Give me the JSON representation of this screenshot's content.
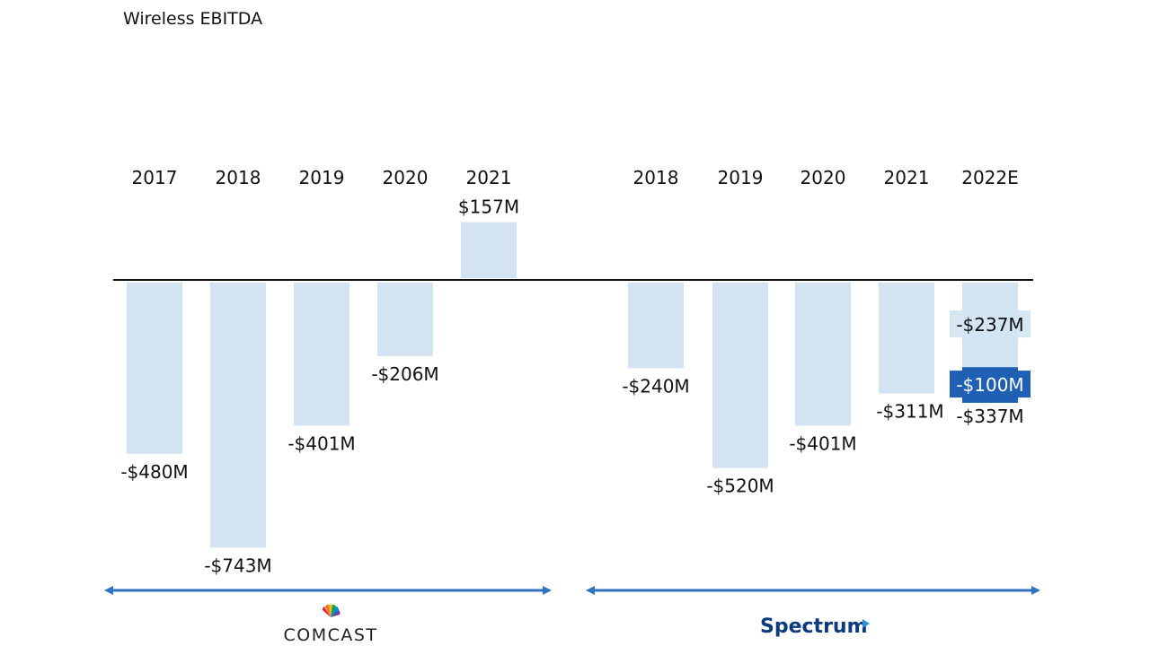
{
  "title": "Wireless EBITDA",
  "chart_data": [
    {
      "type": "bar",
      "company": "COMCAST",
      "categories": [
        "2017",
        "2018",
        "2019",
        "2020",
        "2021"
      ],
      "values": [
        -480,
        -743,
        -401,
        -206,
        157
      ],
      "labels": [
        "-$480M",
        "-$743M",
        "-$401M",
        "-$206M",
        "$157M"
      ],
      "unit": "$M",
      "colors": {
        "bar": "#d3e3f2",
        "axis": "#111111",
        "arrow": "#2e72c0"
      }
    },
    {
      "type": "bar",
      "company": "Spectrum",
      "categories": [
        "2018",
        "2019",
        "2020",
        "2021",
        "2022E"
      ],
      "values": [
        -240,
        -520,
        -401,
        -311,
        -337
      ],
      "labels": [
        "-$240M",
        "-$520M",
        "-$401M",
        "-$311M",
        "-$337M"
      ],
      "unit": "$M",
      "stacked_last": {
        "category": "2022E",
        "segments": [
          {
            "value": -237,
            "label": "-$237M",
            "color": "#d3e3f2"
          },
          {
            "value": -100,
            "label": "-$100M",
            "color": "#1f5fb4"
          }
        ],
        "total_label": "-$337M"
      },
      "colors": {
        "bar": "#d3e3f2",
        "axis": "#111111",
        "arrow": "#2e72c0",
        "highlight": "#1f5fb4"
      }
    }
  ]
}
